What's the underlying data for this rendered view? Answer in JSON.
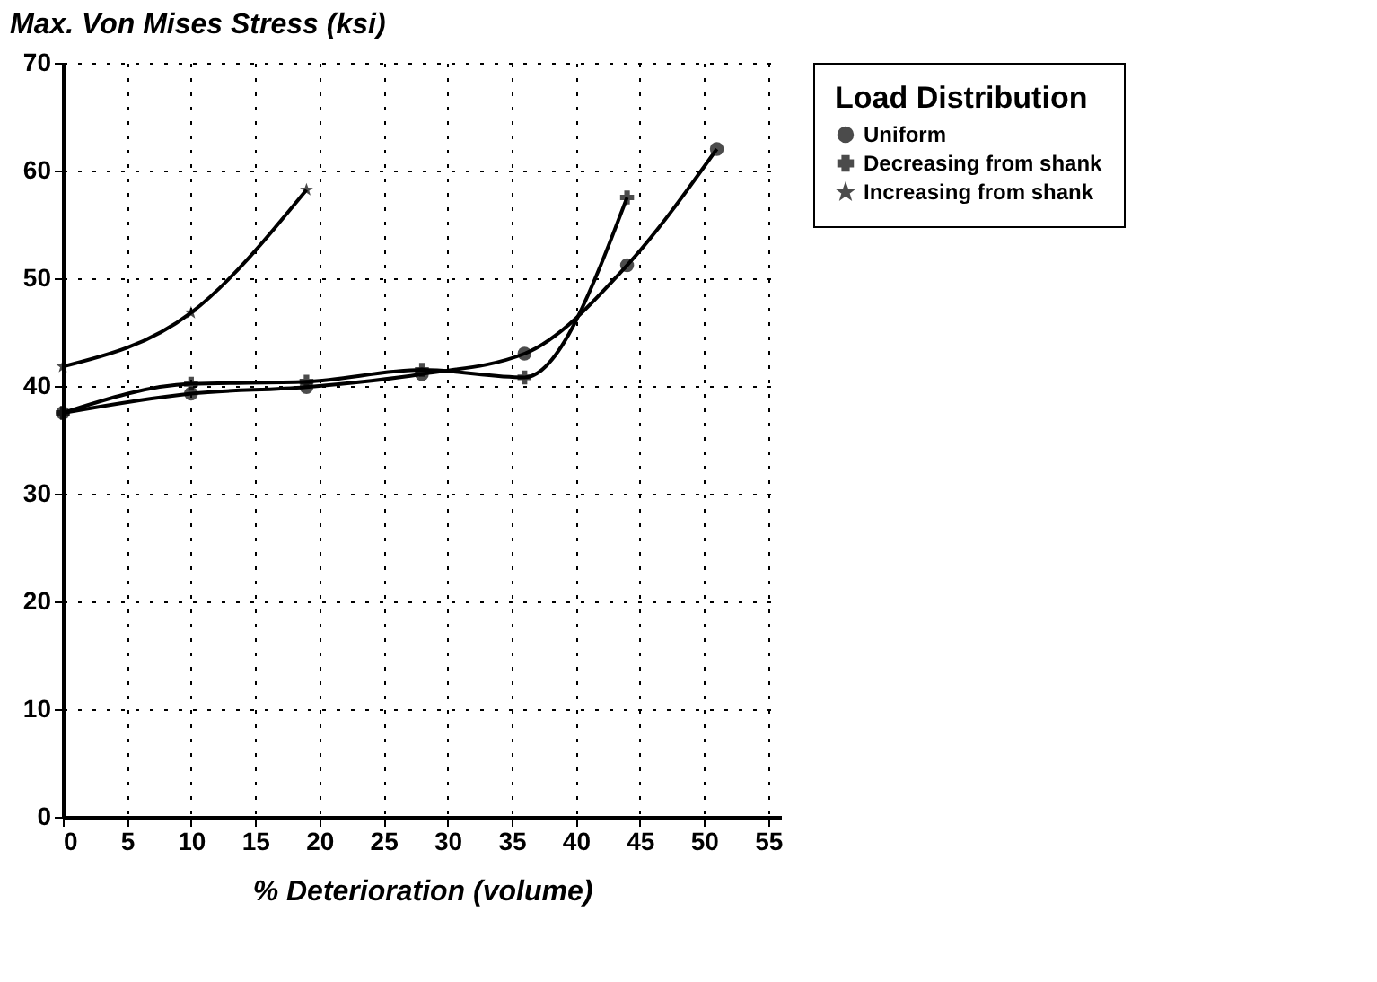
{
  "chart_data": {
    "type": "line",
    "xlabel": "% Deterioration (volume)",
    "ylabel": "Max. Von Mises Stress (ksi)",
    "legend_title": "Load Distribution",
    "series": [
      {
        "name": "Uniform",
        "color": "#000000",
        "marker": "circle",
        "x": [
          0,
          10,
          19,
          28,
          36,
          44,
          51
        ],
        "values": [
          37.5,
          39.3,
          39.9,
          41.1,
          43.0,
          51.2,
          62.0
        ]
      },
      {
        "name": "Decreasing from shank",
        "color": "#000000",
        "marker": "cross",
        "x": [
          0,
          10,
          19,
          28,
          36,
          44
        ],
        "values": [
          37.5,
          40.2,
          40.4,
          41.5,
          40.8,
          57.5
        ]
      },
      {
        "name": "Increasing from shank",
        "color": "#000000",
        "marker": "star",
        "x": [
          0,
          10,
          19
        ],
        "values": [
          41.8,
          46.8,
          58.2
        ]
      }
    ],
    "xlim": [
      0,
      56
    ],
    "xticks": [
      0,
      5,
      10,
      15,
      20,
      25,
      30,
      35,
      40,
      45,
      50,
      55
    ],
    "ylim": [
      0,
      70
    ],
    "yticks": [
      0,
      10,
      20,
      30,
      40,
      50,
      60,
      70
    ],
    "grid": true,
    "legend": "right",
    "line_style": "solid"
  }
}
